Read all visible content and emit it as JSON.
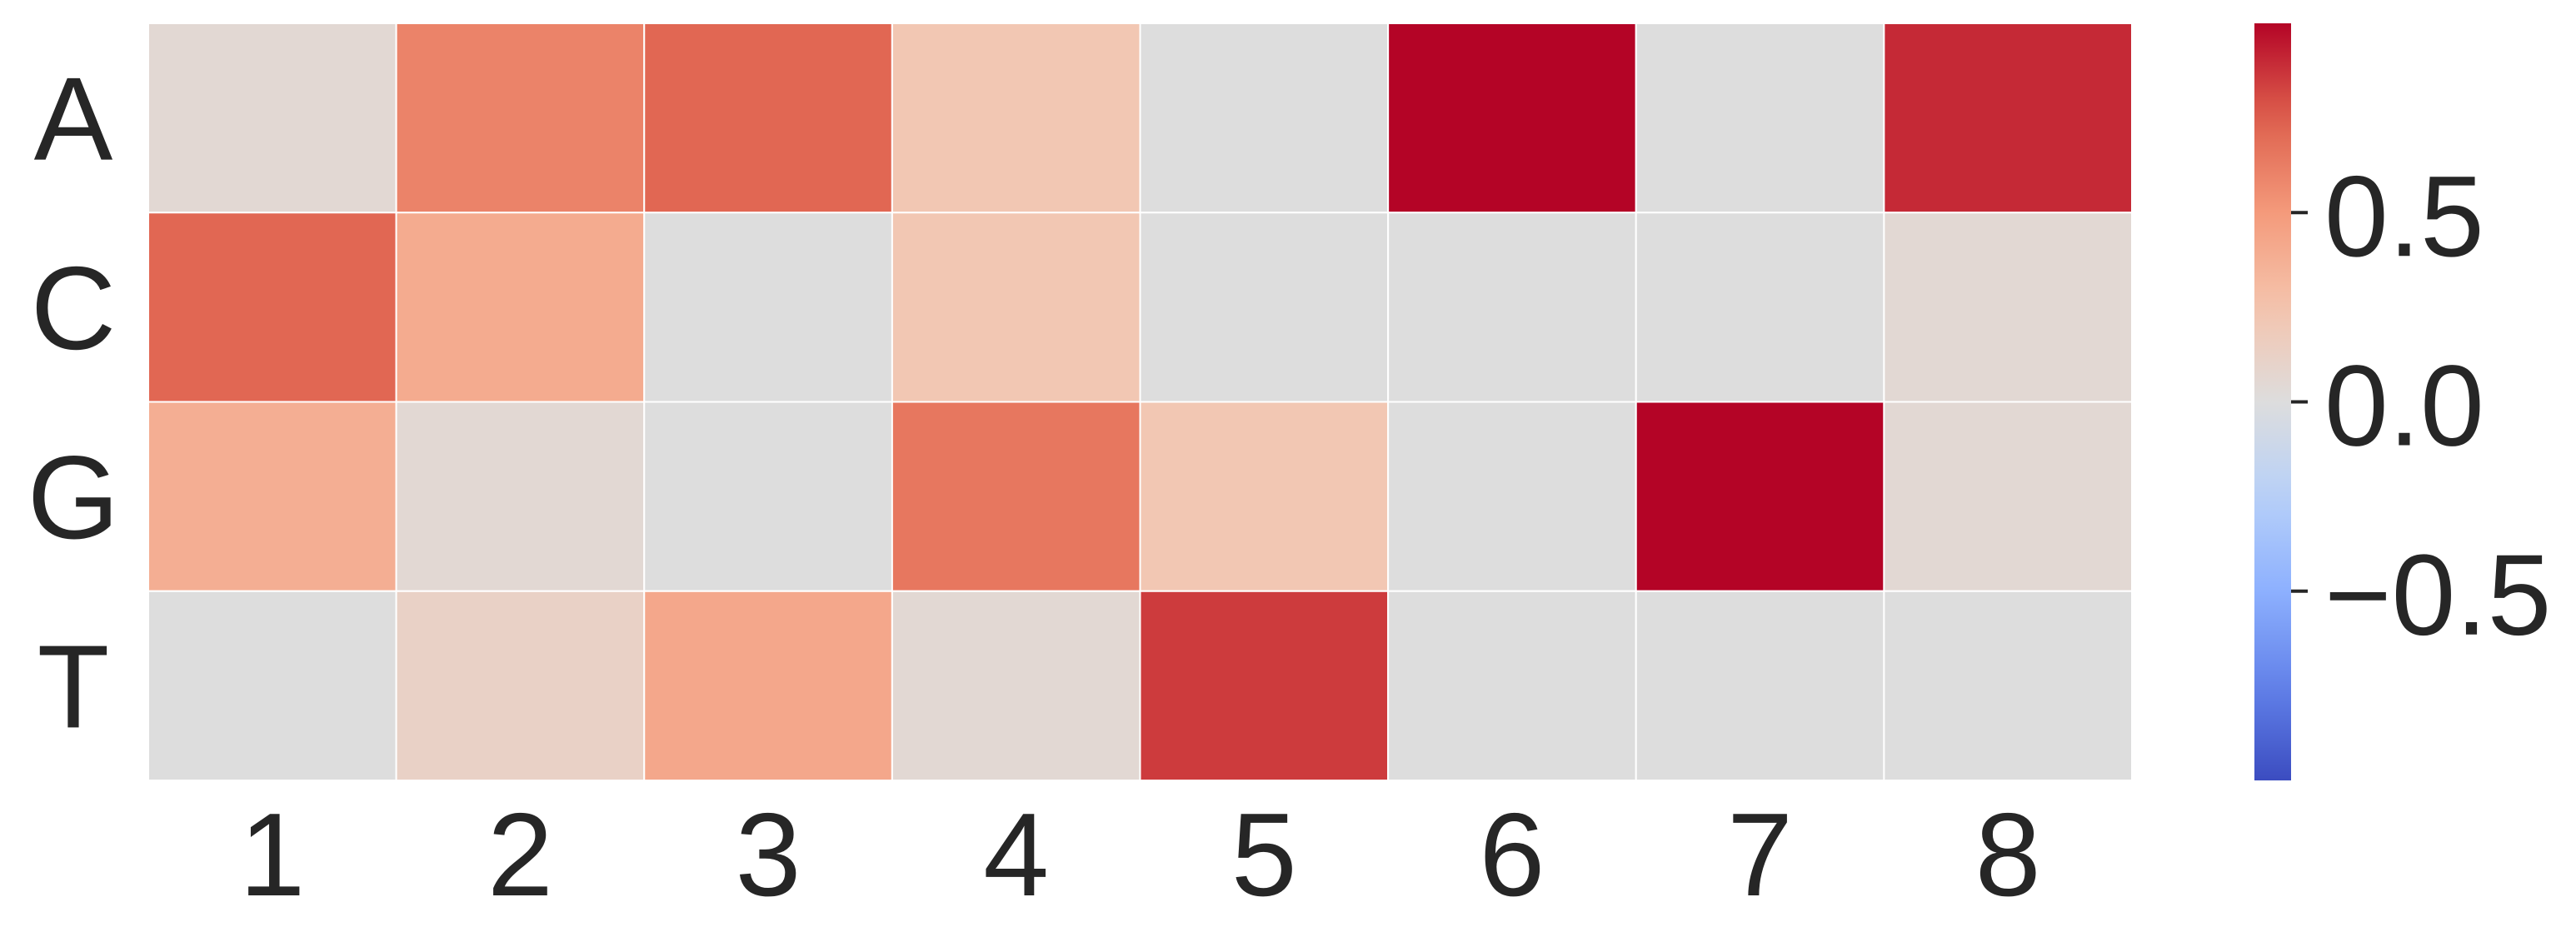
{
  "chart_data": {
    "type": "heatmap",
    "x_labels": [
      "1",
      "2",
      "3",
      "4",
      "5",
      "6",
      "7",
      "8"
    ],
    "y_labels": [
      "A",
      "C",
      "G",
      "T"
    ],
    "values": [
      [
        0.05,
        0.6,
        0.72,
        0.22,
        0.0,
        1.0,
        0.0,
        0.9
      ],
      [
        0.72,
        0.4,
        0.0,
        0.22,
        0.0,
        0.0,
        0.0,
        0.05
      ],
      [
        0.38,
        0.05,
        0.0,
        0.65,
        0.22,
        0.0,
        1.0,
        0.05
      ],
      [
        0.0,
        0.12,
        0.42,
        0.05,
        0.85,
        0.0,
        0.0,
        0.0
      ]
    ],
    "colormap": "coolwarm",
    "vmin": -1.0,
    "vmax": 1.0,
    "colorbar": {
      "ticks": [
        0.5,
        0.0,
        -0.5
      ],
      "tick_labels": [
        "0.5",
        "0.0",
        "−0.5"
      ]
    },
    "grid_lines": "white",
    "title": "",
    "xlabel": "",
    "ylabel": ""
  }
}
